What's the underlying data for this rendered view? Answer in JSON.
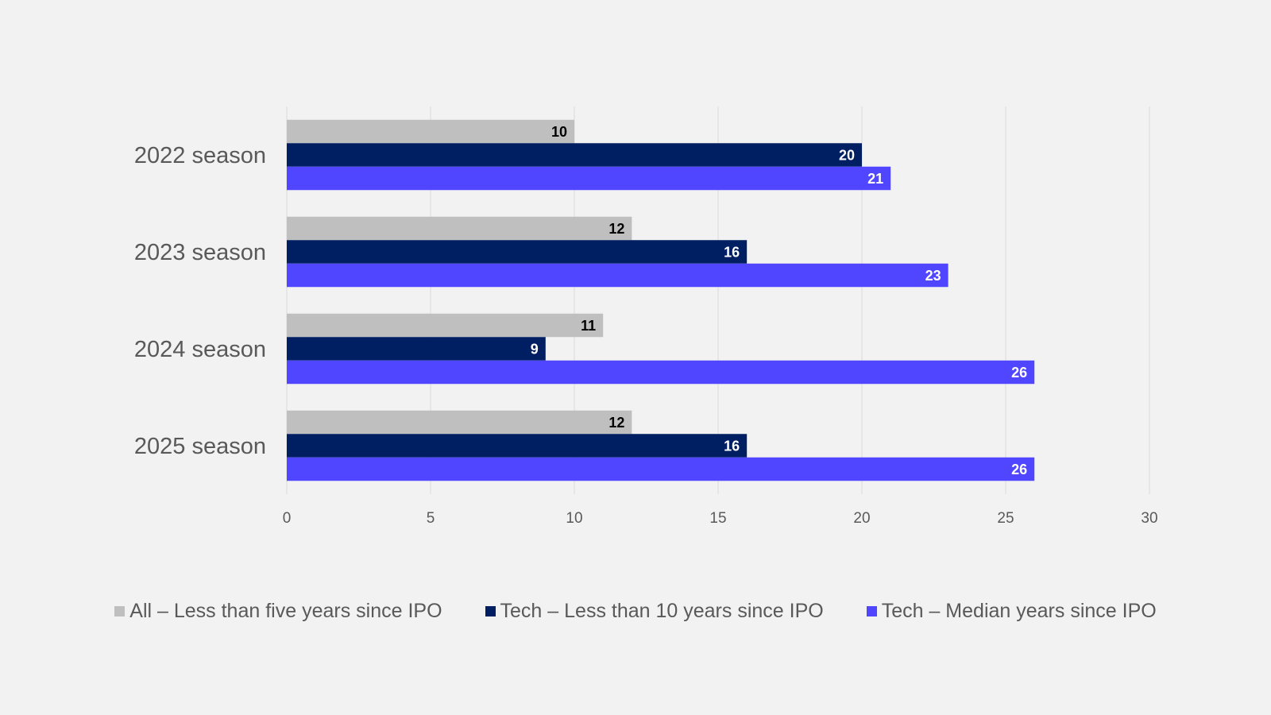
{
  "chart_data": {
    "type": "bar",
    "orientation": "horizontal",
    "categories": [
      "2022 season",
      "2023 season",
      "2024 season",
      "2025 season"
    ],
    "series": [
      {
        "name": "All – Less than five years since IPO",
        "color": "#bfbfbf",
        "label_color": "#000000",
        "values": [
          10,
          12,
          11,
          12
        ]
      },
      {
        "name": "Tech – Less than 10 years since IPO",
        "color": "#001e62",
        "label_color": "#ffffff",
        "values": [
          20,
          16,
          9,
          16
        ]
      },
      {
        "name": "Tech – Median years since IPO",
        "color": "#5046ff",
        "label_color": "#ffffff",
        "values": [
          21,
          23,
          26,
          26
        ]
      }
    ],
    "xlim": [
      0,
      30
    ],
    "xticks": [
      "0",
      "5",
      "10",
      "15",
      "20",
      "25",
      "30"
    ],
    "xtick_values": [
      0,
      5,
      10,
      15,
      20,
      25,
      30
    ],
    "grid": true,
    "legend_position": "bottom",
    "data_labels": true
  }
}
